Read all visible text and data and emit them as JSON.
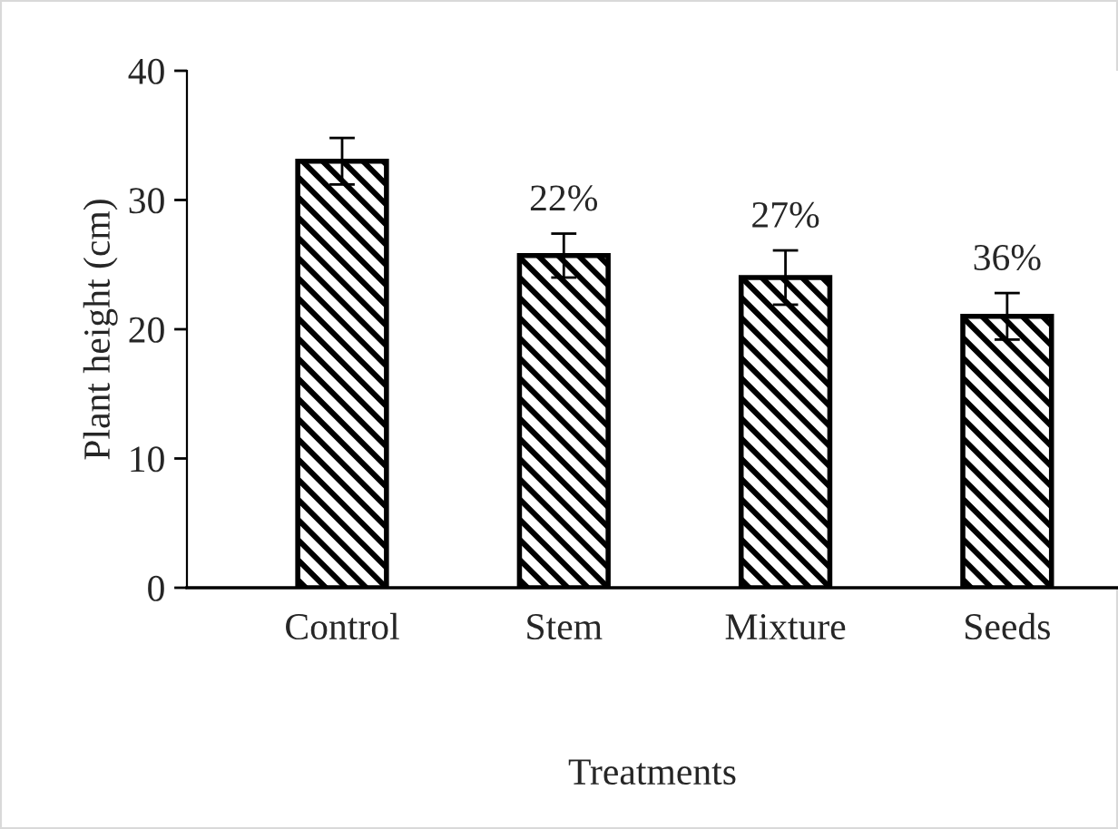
{
  "chart_data": {
    "type": "bar",
    "xlabel": "Treatments",
    "ylabel": "Plant height (cm)",
    "categories": [
      "Control",
      "Stem",
      "Mixture",
      "Seeds"
    ],
    "values": [
      33.0,
      25.7,
      24.0,
      21.0
    ],
    "errors": [
      1.8,
      1.7,
      2.1,
      1.8
    ],
    "color": "#000000",
    "ylim": [
      0,
      40
    ],
    "yticks": [
      0,
      10,
      20,
      30,
      40
    ],
    "grid": false,
    "annotations": [
      "22%",
      "27%",
      "36%"
    ]
  }
}
